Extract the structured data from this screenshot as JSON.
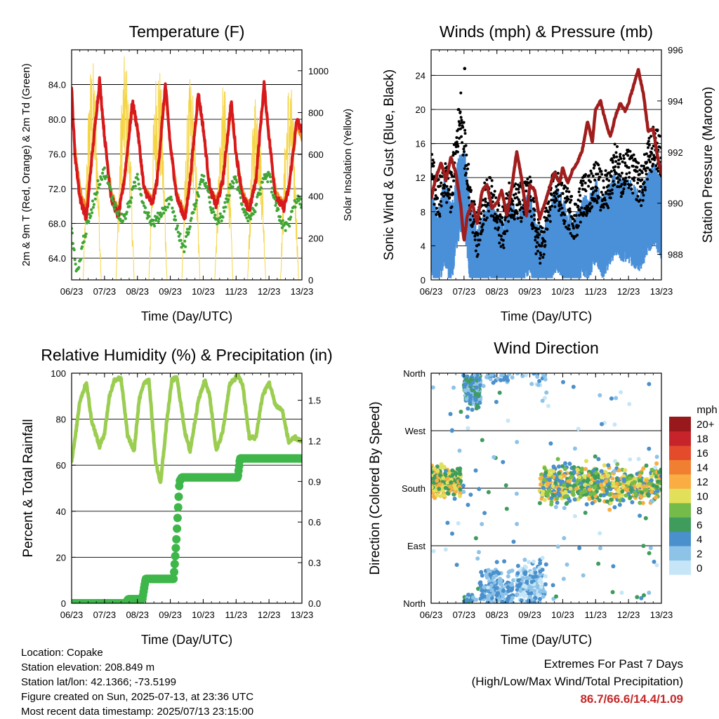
{
  "chart_data": [
    {
      "type": "line",
      "title": "Temperature (F)",
      "xlabel": "Time (Day/UTC)",
      "ylabel": "2m & 9m T (Red, Orange) & 2m Td (Green)",
      "ylabel_right": "Solar Insolation (Yellow)",
      "x_ticks": [
        "06/23",
        "07/23",
        "08/23",
        "09/23",
        "10/23",
        "11/23",
        "12/23",
        "13/23"
      ],
      "y_ticks": [
        "64.0",
        "68.0",
        "72.0",
        "76.0",
        "80.0",
        "84.0"
      ],
      "y_right_ticks": [
        "0",
        "200",
        "400",
        "600",
        "800",
        "1000"
      ],
      "ylim": [
        61.5,
        88.0
      ],
      "y_right_lim": [
        0,
        1100
      ],
      "grid": true,
      "series": [
        {
          "name": "2m T",
          "color": "#d7191c",
          "x": [
            0,
            0.1,
            0.25,
            0.45,
            0.6,
            0.85,
            1.0,
            1.2,
            1.42,
            1.6,
            1.85,
            2.0,
            2.2,
            2.45,
            2.6,
            2.85,
            3.0,
            3.2,
            3.45,
            3.6,
            3.85,
            4.0,
            4.2,
            4.4,
            4.6,
            4.85,
            5.0,
            5.2,
            5.4,
            5.6,
            5.85,
            6.0,
            6.2,
            6.45,
            6.6,
            6.85,
            7.0
          ],
          "y": [
            83.5,
            76,
            71,
            68.5,
            75,
            84.5,
            78,
            71,
            68.8,
            73,
            82,
            79,
            72,
            70.2,
            73,
            84,
            77,
            71,
            68.5,
            73,
            83,
            79,
            72,
            70,
            73,
            82,
            76,
            71,
            69.5,
            73,
            84,
            78,
            71,
            69.8,
            72,
            80,
            78.5
          ]
        },
        {
          "name": "9m T",
          "color": "#f08c25",
          "x": [
            0,
            0.1,
            0.25,
            0.45,
            0.6,
            0.85,
            1.0,
            1.2,
            1.42,
            1.6,
            1.85,
            2.0,
            2.2,
            2.45,
            2.6,
            2.85,
            3.0,
            3.2,
            3.45,
            3.6,
            3.85,
            4.0,
            4.2,
            4.4,
            4.6,
            4.85,
            5.0,
            5.2,
            5.4,
            5.6,
            5.85,
            6.0,
            6.2,
            6.45,
            6.6,
            6.85,
            7.0
          ],
          "y": [
            83,
            76.5,
            72,
            69.5,
            75,
            84,
            78,
            71.5,
            69.2,
            73,
            81.5,
            79,
            72,
            70.6,
            73,
            83.5,
            77,
            71.5,
            69,
            73,
            82.5,
            79,
            72,
            70.5,
            73,
            81.5,
            76,
            71.5,
            70,
            73,
            83.5,
            78,
            71.5,
            70.2,
            72,
            79.5,
            78
          ]
        },
        {
          "name": "2m Td",
          "color": "#3fa535",
          "x": [
            0,
            0.1,
            0.2,
            0.35,
            0.5,
            0.7,
            0.85,
            1.0,
            1.2,
            1.4,
            1.6,
            1.85,
            2.0,
            2.2,
            2.45,
            2.6,
            2.85,
            3.0,
            3.2,
            3.4,
            3.6,
            3.85,
            4.0,
            4.2,
            4.4,
            4.6,
            4.85,
            5.0,
            5.2,
            5.4,
            5.6,
            5.85,
            6.0,
            6.2,
            6.45,
            6.6,
            6.85,
            7.0
          ],
          "y": [
            68,
            63.5,
            62.5,
            66,
            68,
            71,
            73,
            74,
            71.5,
            69,
            68.5,
            71.5,
            73.5,
            70,
            68,
            68.5,
            70,
            71,
            67.5,
            65,
            68,
            71.5,
            73.5,
            70.5,
            68,
            69,
            72.5,
            73,
            70,
            68.5,
            70,
            73,
            73.5,
            70,
            67.5,
            68,
            71,
            70
          ]
        },
        {
          "name": "Solar Insolation",
          "color": "#f5d547",
          "axis": "right",
          "day_peaks": [
            1070,
            1080,
            1090,
            980,
            940,
            960,
            980
          ],
          "day_min": [
            0.35,
            1.35,
            2.35,
            3.35,
            4.35,
            5.35,
            6.35
          ]
        }
      ]
    },
    {
      "type": "scatter",
      "title": "Winds (mph) & Pressure (mb)",
      "xlabel": "Time (Day/UTC)",
      "ylabel": "Sonic Wind & Gust (Blue, Black)",
      "ylabel_right": "Station Pressure (Maroon)",
      "x_ticks": [
        "06/23",
        "07/23",
        "08/23",
        "09/23",
        "10/23",
        "11/23",
        "12/23",
        "13/23"
      ],
      "y_ticks": [
        "0",
        "4",
        "8",
        "12",
        "16",
        "20",
        "24"
      ],
      "y_right_ticks": [
        "988",
        "990",
        "992",
        "994",
        "996"
      ],
      "ylim": [
        0,
        27
      ],
      "y_right_lim": [
        987.0,
        996.0
      ],
      "grid": true,
      "series": [
        {
          "name": "Sonic Wind",
          "color": "#4a90d9",
          "x": [
            0,
            0.2,
            0.4,
            0.6,
            0.8,
            1.0,
            1.2,
            1.4,
            1.6,
            1.8,
            2.0,
            2.2,
            2.4,
            2.6,
            2.8,
            3.0,
            3.2,
            3.4,
            3.6,
            3.8,
            4.0,
            4.2,
            4.4,
            4.6,
            4.8,
            5.0,
            5.2,
            5.4,
            5.6,
            5.8,
            6.0,
            6.2,
            6.4,
            6.6,
            6.8,
            7.0
          ],
          "y": [
            7,
            4,
            8,
            5,
            10,
            12,
            5,
            2,
            4,
            6,
            4,
            3,
            6,
            4,
            5,
            7,
            3,
            2,
            5,
            7,
            6,
            4,
            4,
            6,
            6,
            8,
            6,
            7,
            9,
            8,
            8,
            7,
            7,
            9,
            10,
            8
          ]
        },
        {
          "name": "Gust",
          "color": "#000000",
          "x": [
            0,
            0.2,
            0.4,
            0.6,
            0.8,
            0.9,
            1.0,
            1.2,
            1.4,
            1.6,
            1.8,
            2.0,
            2.2,
            2.4,
            2.6,
            2.8,
            3.0,
            3.2,
            3.4,
            3.6,
            3.8,
            4.0,
            4.2,
            4.4,
            4.6,
            4.8,
            5.0,
            5.2,
            5.4,
            5.6,
            5.8,
            6.0,
            6.2,
            6.4,
            6.6,
            6.8,
            7.0
          ],
          "y": [
            13,
            9,
            12,
            10,
            17,
            20,
            16,
            9,
            5,
            9,
            10,
            7,
            6,
            10,
            9,
            9,
            10,
            5,
            4,
            9,
            11,
            9,
            8,
            7,
            10,
            10,
            12,
            10,
            11,
            14,
            12,
            13,
            12,
            11,
            14,
            16,
            14
          ]
        },
        {
          "name": "Station Pressure",
          "color": "#a01d1d",
          "axis": "right",
          "x": [
            0,
            0.15,
            0.3,
            0.45,
            0.6,
            0.75,
            0.9,
            1.0,
            1.1,
            1.25,
            1.4,
            1.55,
            1.7,
            1.85,
            2.0,
            2.15,
            2.3,
            2.45,
            2.6,
            2.75,
            2.9,
            3.0,
            3.15,
            3.3,
            3.45,
            3.6,
            3.75,
            3.9,
            4.0,
            4.15,
            4.3,
            4.45,
            4.6,
            4.75,
            4.9,
            5.0,
            5.15,
            5.3,
            5.45,
            5.6,
            5.75,
            5.9,
            6.0,
            6.15,
            6.3,
            6.45,
            6.6,
            6.75,
            6.9,
            7.0
          ],
          "y": [
            990.2,
            991.0,
            991.6,
            990.9,
            991.8,
            991.2,
            989.9,
            988.5,
            989.5,
            990.0,
            989.2,
            990.5,
            990.7,
            989.8,
            990.0,
            990.5,
            989.5,
            990.6,
            992.0,
            991.0,
            989.5,
            990.7,
            990.5,
            989.4,
            990.0,
            990.6,
            991.2,
            990.8,
            991.4,
            990.8,
            991.3,
            991.6,
            992.1,
            993.2,
            992.4,
            993.7,
            994.0,
            993.2,
            992.6,
            993.4,
            993.9,
            993.6,
            993.9,
            994.6,
            995.2,
            994.3,
            992.8,
            992.9,
            991.7,
            991.2
          ]
        }
      ]
    },
    {
      "type": "line",
      "title": "Relative Humidity (%) & Precipitation (in)",
      "xlabel": "Time (Day/UTC)",
      "ylabel": "Percent & Total Rainfall",
      "x_ticks": [
        "06/23",
        "07/23",
        "08/23",
        "09/23",
        "10/23",
        "11/23",
        "12/23",
        "13/23"
      ],
      "y_ticks": [
        "0",
        "20",
        "40",
        "60",
        "80",
        "100"
      ],
      "y_right_ticks": [
        "0.0",
        "0.3",
        "0.6",
        "0.9",
        "1.2",
        "1.5"
      ],
      "ylim": [
        0,
        100
      ],
      "y_right_lim": [
        0,
        1.7
      ],
      "grid": true,
      "series": [
        {
          "name": "Relative Humidity",
          "color": "#9acd50",
          "x": [
            0,
            0.1,
            0.25,
            0.45,
            0.6,
            0.85,
            1.0,
            1.15,
            1.3,
            1.5,
            1.7,
            1.9,
            2.05,
            2.2,
            2.35,
            2.55,
            2.7,
            2.9,
            3.05,
            3.2,
            3.45,
            3.6,
            3.85,
            4.05,
            4.2,
            4.4,
            4.6,
            4.8,
            5.05,
            5.2,
            5.4,
            5.6,
            5.8,
            6.0,
            6.2,
            6.4,
            6.6,
            6.8,
            7.0
          ],
          "y": [
            62,
            71,
            88,
            96,
            80,
            68,
            74,
            90,
            97,
            98,
            73,
            66,
            88,
            96,
            97,
            62,
            52,
            80,
            97,
            98,
            74,
            66,
            88,
            97,
            90,
            66,
            75,
            95,
            99,
            95,
            72,
            72,
            90,
            96,
            86,
            84,
            70,
            72,
            70
          ]
        },
        {
          "name": "Total Rainfall",
          "color": "#3fb64a",
          "axis": "right",
          "step": true,
          "x": [
            0,
            1.65,
            1.72,
            2.15,
            2.25,
            3.1,
            3.18,
            3.28,
            3.35,
            5.05,
            5.12,
            7.0
          ],
          "y": [
            0,
            0,
            0.03,
            0.03,
            0.18,
            0.18,
            0.45,
            0.9,
            0.93,
            0.93,
            1.07,
            1.07
          ]
        }
      ]
    },
    {
      "type": "scatter",
      "title": "Wind Direction",
      "xlabel": "Time (Day/UTC)",
      "ylabel": "Direction (Colored By Speed)",
      "x_ticks": [
        "06/23",
        "07/23",
        "08/23",
        "09/23",
        "10/23",
        "11/23",
        "12/23",
        "13/23"
      ],
      "y_ticks": [
        "North",
        "East",
        "South",
        "West",
        "North"
      ],
      "ylim": [
        0,
        360
      ],
      "grid": true,
      "colorbar": {
        "title": "mph",
        "labels": [
          "0",
          "2",
          "4",
          "6",
          "8",
          "10",
          "12",
          "14",
          "16",
          "18",
          "20+"
        ],
        "colors": [
          "#c6e6f7",
          "#8ec3e8",
          "#4a90cc",
          "#3f9c5d",
          "#74bb4a",
          "#e2e05a",
          "#f9ad42",
          "#f07f32",
          "#e34b2a",
          "#c6232a",
          "#99181c"
        ]
      },
      "bands": [
        {
          "x_range": [
            0,
            0.9
          ],
          "dir_center": 190,
          "dir_spread": 15,
          "speeds": [
            6,
            10,
            12
          ]
        },
        {
          "x_range": [
            1.0,
            1.5
          ],
          "dir_center": 340,
          "dir_spread": 25,
          "speeds": [
            2,
            4,
            6
          ]
        },
        {
          "x_range": [
            1.5,
            2.5
          ],
          "dir_center": 20,
          "dir_spread": 25,
          "speeds": [
            2,
            4
          ]
        },
        {
          "x_range": [
            2.6,
            3.5
          ],
          "dir_center": 30,
          "dir_spread": 30,
          "speeds": [
            0,
            2,
            4
          ]
        },
        {
          "x_range": [
            3.3,
            7.0
          ],
          "dir_center": 185,
          "dir_spread": 20,
          "speeds": [
            4,
            6,
            8,
            10,
            12
          ]
        }
      ]
    }
  ],
  "info": {
    "location": "Location: Copake",
    "elevation": "Station elevation: 208.849 m",
    "latlon": "Station lat/lon: 42.1366; -73.5199",
    "created": "Figure created on Sun, 2025-07-13, at 23:36 UTC",
    "recent": "Most recent data timestamp: 2025/07/13 23:15:00"
  },
  "extremes": {
    "title": "Extremes For Past 7 Days",
    "subtitle": "(High/Low/Max Wind/Total Precipitation)",
    "values": "86.7/66.6/14.4/1.09"
  }
}
